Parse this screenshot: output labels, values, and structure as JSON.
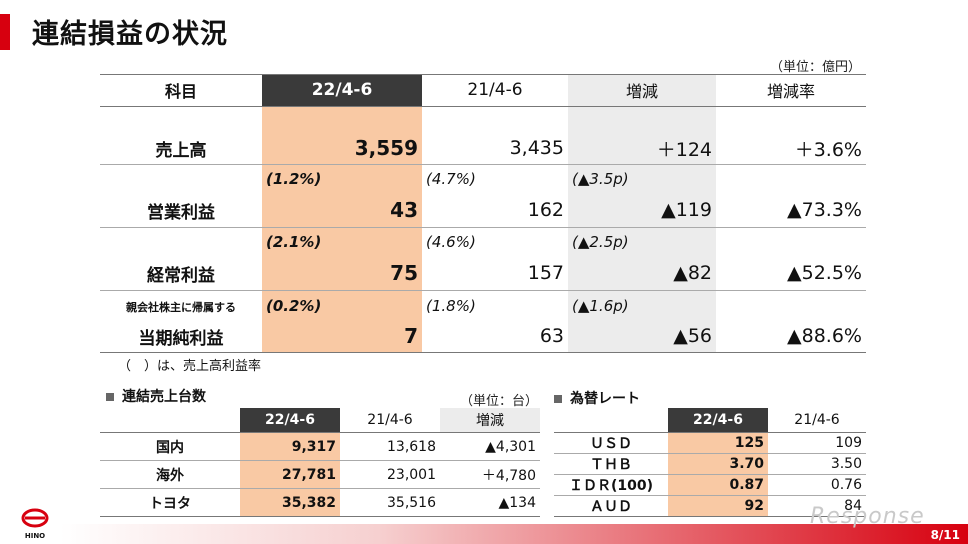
{
  "title": "連結損益の状況",
  "main_table": {
    "unit": "（単位：億円）",
    "headers": [
      "科目",
      "22/4-6",
      "21/4-6",
      "増減",
      "増減率"
    ],
    "rows": [
      {
        "label": "売上高",
        "cur": "3,559",
        "prev": "3,435",
        "diff": "＋124",
        "rate": "＋3.6%"
      },
      {
        "label": "営業利益",
        "cur_sub": "(1.2%)",
        "prev_sub": "(4.7%)",
        "diff_sub": "(▲3.5p)",
        "cur": "43",
        "prev": "162",
        "diff": "▲119",
        "rate": "▲73.3%"
      },
      {
        "label": "経常利益",
        "cur_sub": "(2.1%)",
        "prev_sub": "(4.6%)",
        "diff_sub": "(▲2.5p)",
        "cur": "75",
        "prev": "157",
        "diff": "▲82",
        "rate": "▲52.5%"
      },
      {
        "pre_label": "親会社株主に帰属する",
        "label": "当期純利益",
        "cur_sub": "(0.2%)",
        "prev_sub": "(1.8%)",
        "diff_sub": "(▲1.6p)",
        "cur": "7",
        "prev": "63",
        "diff": "▲56",
        "rate": "▲88.6%"
      }
    ],
    "note": "（　）は、売上高利益率"
  },
  "units_table": {
    "section": "連結売上台数",
    "unit": "（単位：台）",
    "headers": [
      "22/4-6",
      "21/4-6",
      "増減"
    ],
    "rows": [
      {
        "label": "国内",
        "cur": "9,317",
        "prev": "13,618",
        "diff": "▲4,301"
      },
      {
        "label": "海外",
        "cur": "27,781",
        "prev": "23,001",
        "diff": "＋4,780"
      },
      {
        "label": "トヨタ",
        "cur": "35,382",
        "prev": "35,516",
        "diff": "▲134"
      }
    ]
  },
  "fx_table": {
    "section": "為替レート",
    "headers": [
      "22/4-6",
      "21/4-6"
    ],
    "rows": [
      {
        "label": "ＵＳＤ",
        "cur": "125",
        "prev": "109"
      },
      {
        "label": "ＴＨＢ",
        "cur": "3.70",
        "prev": "3.50"
      },
      {
        "label": "ＩＤＲ(100)",
        "cur": "0.87",
        "prev": "0.76"
      },
      {
        "label": "ＡＵＤ",
        "cur": "92",
        "prev": "84"
      }
    ]
  },
  "footer": {
    "logo_text": "HINO",
    "watermark": "Response",
    "page": "8/11",
    "brand_color": "#d7000f"
  }
}
